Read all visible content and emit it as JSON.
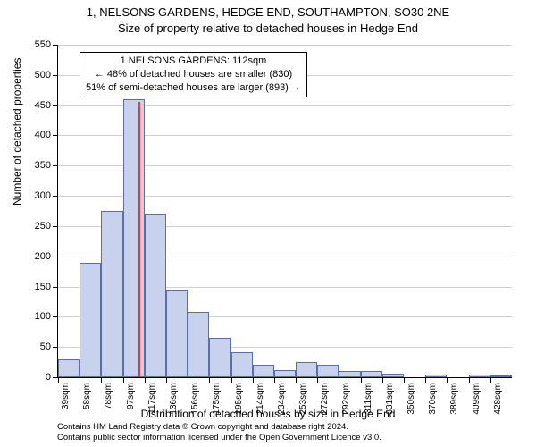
{
  "chart": {
    "type": "histogram",
    "title_main": "1, NELSONS GARDENS, HEDGE END, SOUTHAMPTON, SO30 2NE",
    "title_sub": "Size of property relative to detached houses in Hedge End",
    "y_axis_title": "Number of detached properties",
    "x_axis_title": "Distribution of detached houses by size in Hedge End",
    "y_max": 550,
    "y_ticks": [
      0,
      50,
      100,
      150,
      200,
      250,
      300,
      350,
      400,
      450,
      500,
      550
    ],
    "x_labels": [
      "39sqm",
      "58sqm",
      "78sqm",
      "97sqm",
      "117sqm",
      "136sqm",
      "156sqm",
      "175sqm",
      "195sqm",
      "214sqm",
      "234sqm",
      "253sqm",
      "272sqm",
      "292sqm",
      "311sqm",
      "331sqm",
      "350sqm",
      "370sqm",
      "389sqm",
      "409sqm",
      "428sqm"
    ],
    "bar_values": [
      30,
      190,
      275,
      460,
      270,
      145,
      108,
      65,
      42,
      20,
      12,
      25,
      20,
      10,
      10,
      6,
      0,
      4,
      0,
      4,
      3
    ],
    "bar_fill": "#c8d2ec",
    "bar_border": "#5b6ea7",
    "indicator_value_index": 3.75,
    "indicator_color": "#e53935",
    "indicator_height_value": 455,
    "grid_color": "#d0d0d0",
    "background_color": "#ffffff",
    "annotation": {
      "line1": "1 NELSONS GARDENS: 112sqm",
      "line2": "← 48% of detached houses are smaller (830)",
      "line3": "51% of semi-detached houses are larger (893) →"
    },
    "footer_line1": "Contains HM Land Registry data © Crown copyright and database right 2024.",
    "footer_line2": "Contains public sector information licensed under the Open Government Licence v3.0."
  }
}
